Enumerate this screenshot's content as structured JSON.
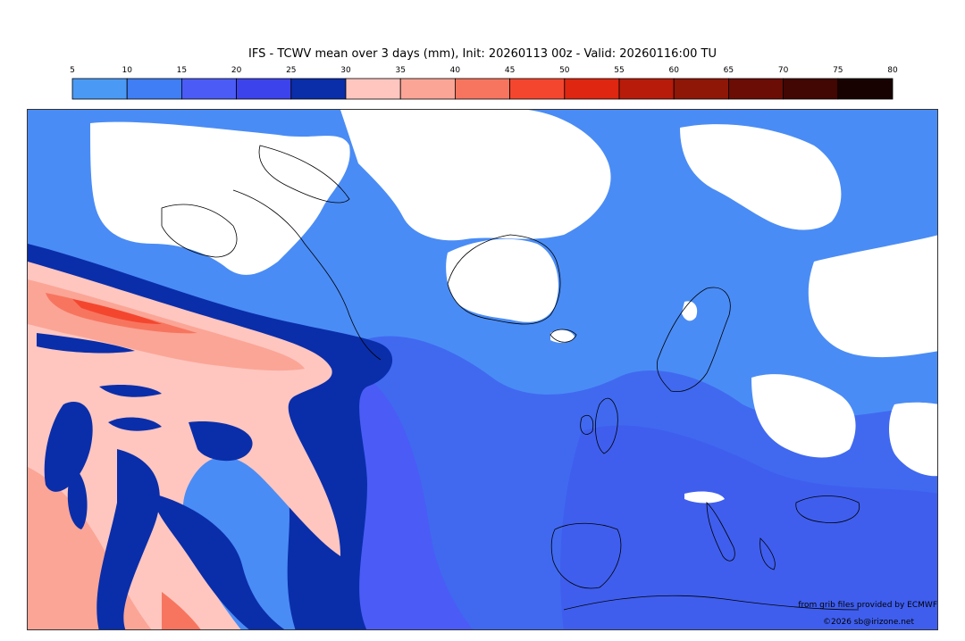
{
  "title": "IFS - TCWV mean over 3 days (mm), Init: 20260113 00z - Valid: 20260116:00 TU",
  "colorbar": {
    "ticks": [
      "5",
      "10",
      "15",
      "20",
      "25",
      "30",
      "35",
      "40",
      "45",
      "50",
      "55",
      "60",
      "65",
      "70",
      "75",
      "80"
    ],
    "colors": [
      "#4a9af5",
      "#3f7ef4",
      "#4a5cf5",
      "#3d43ec",
      "#0a2eaa",
      "#ffc6bf",
      "#fba596",
      "#f7755f",
      "#f4462f",
      "#de2610",
      "#b81b0a",
      "#8e1707",
      "#6b0d05",
      "#420603",
      "#180201"
    ]
  },
  "map_colors": {
    "no_data": "#ffffff",
    "band_5_10": "#4a9af5",
    "band_10_15": "#3f7ef4",
    "band_15_20": "#4a5cf5",
    "band_20_25": "#3d43ec",
    "band_25_30": "#0a2eaa",
    "band_30_35": "#ffc6bf",
    "band_35_40": "#fba596",
    "band_40_45": "#f7755f",
    "band_45_50": "#f4462f",
    "coastline": "#000000"
  },
  "credits": {
    "source": "from grib files provided by ECMWF",
    "copyright": "©2026 sb@irizone.net"
  }
}
